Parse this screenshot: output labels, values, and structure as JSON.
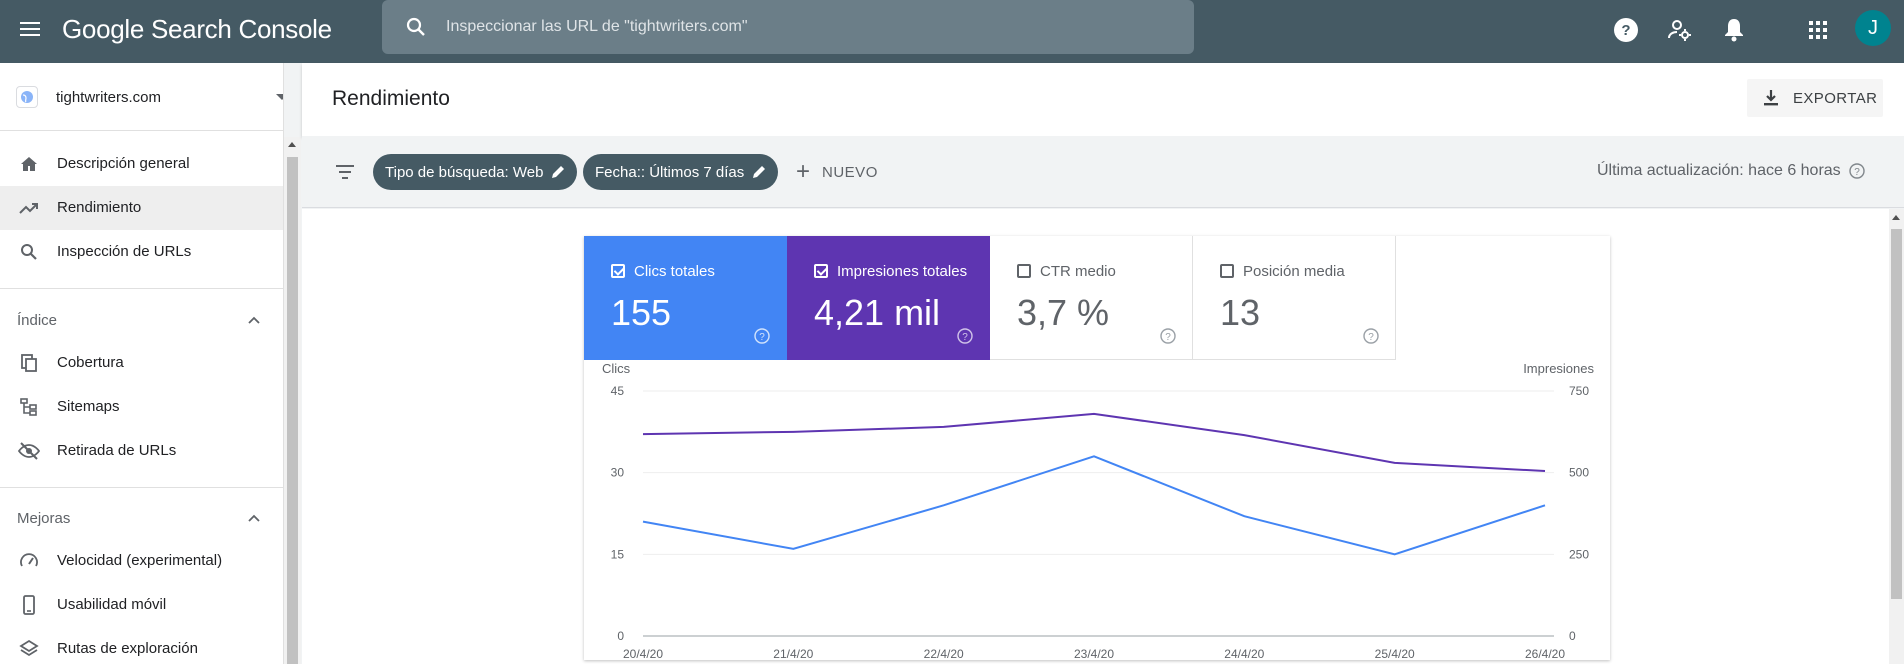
{
  "app": {
    "title": "Google Search Console"
  },
  "search": {
    "placeholder": "Inspeccionar las URL de \"tightwriters.com\""
  },
  "user": {
    "initial": "J"
  },
  "property": {
    "name": "tightwriters.com"
  },
  "sidebar": {
    "items": [
      {
        "label": "Descripción general",
        "icon": "home-icon"
      },
      {
        "label": "Rendimiento",
        "icon": "trending-up-icon",
        "active": true
      },
      {
        "label": "Inspección de URLs",
        "icon": "search-icon"
      }
    ],
    "index_section": {
      "title": "Índice",
      "items": [
        {
          "label": "Cobertura",
          "icon": "coverage-icon"
        },
        {
          "label": "Sitemaps",
          "icon": "sitemap-icon"
        },
        {
          "label": "Retirada de URLs",
          "icon": "eye-off-icon"
        }
      ]
    },
    "improvements_section": {
      "title": "Mejoras",
      "items": [
        {
          "label": "Velocidad (experimental)",
          "icon": "speed-icon"
        },
        {
          "label": "Usabilidad móvil",
          "icon": "phone-icon"
        },
        {
          "label": "Rutas de exploración",
          "icon": "layers-icon"
        }
      ]
    }
  },
  "header": {
    "title": "Rendimiento",
    "export_label": "EXPORTAR"
  },
  "filters": {
    "chips": [
      {
        "label": "Tipo de búsqueda: Web"
      },
      {
        "label": "Fecha:: Últimos 7 días"
      }
    ],
    "new_label": "NUEVO",
    "last_update": "Última actualización: hace 6 horas"
  },
  "metrics": [
    {
      "label": "Clics totales",
      "value": "155",
      "checked": true,
      "color": "#4285f4"
    },
    {
      "label": "Impresiones totales",
      "value": "4,21 mil",
      "checked": true,
      "color": "#5e35b1"
    },
    {
      "label": "CTR medio",
      "value": "3,7 %",
      "checked": false
    },
    {
      "label": "Posición media",
      "value": "13",
      "checked": false
    }
  ],
  "chart_data": {
    "type": "line",
    "categories": [
      "20/4/20",
      "21/4/20",
      "22/4/20",
      "23/4/20",
      "24/4/20",
      "25/4/20",
      "26/4/20"
    ],
    "ylabel": "Clics",
    "y2label": "Impresiones",
    "ylim": [
      0,
      45
    ],
    "y2lim": [
      0,
      750
    ],
    "yticks": [
      "0",
      "15",
      "30",
      "45"
    ],
    "y2ticks": [
      "0",
      "250",
      "500",
      "750"
    ],
    "series": [
      {
        "name": "Clics totales",
        "axis": "left",
        "color": "#4285f4",
        "values": [
          21,
          16,
          24,
          33,
          22,
          15,
          24
        ]
      },
      {
        "name": "Impresiones totales",
        "axis": "right",
        "color": "#5e35b1",
        "values": [
          618,
          625,
          640,
          680,
          615,
          530,
          505
        ]
      }
    ]
  }
}
